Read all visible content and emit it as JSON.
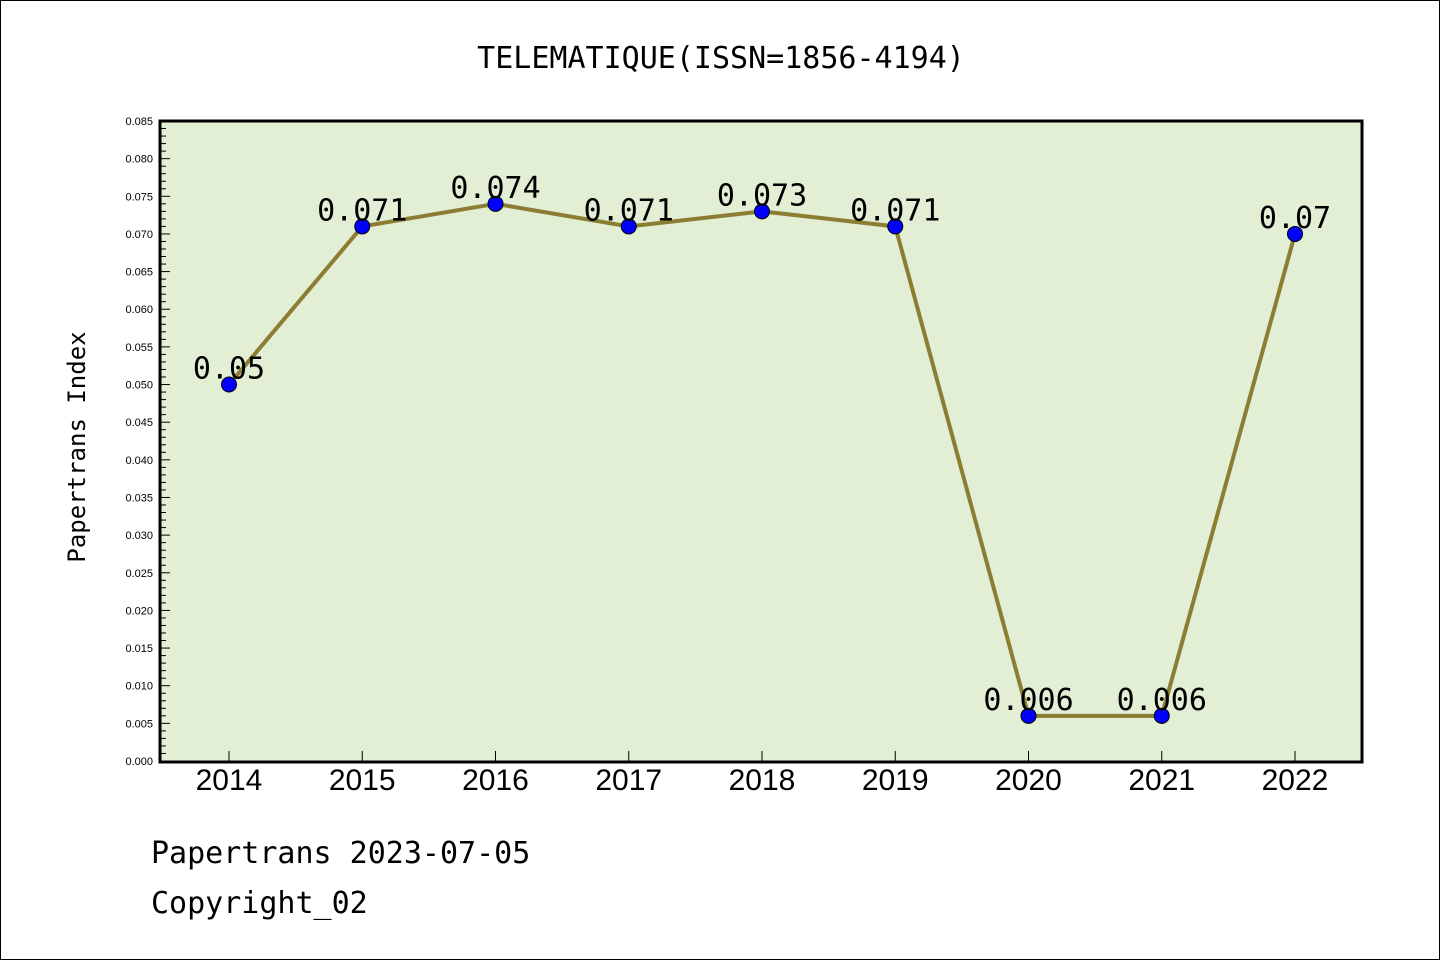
{
  "chart_data": {
    "type": "line",
    "title": "TELEMATIQUE(ISSN=1856-4194)",
    "xlabel": "",
    "ylabel": "Papertrans Index",
    "categories": [
      "2014",
      "2015",
      "2016",
      "2017",
      "2018",
      "2019",
      "2020",
      "2021",
      "2022"
    ],
    "series": [
      {
        "values": [
          0.05,
          0.071,
          0.074,
          0.071,
          0.073,
          0.071,
          0.006,
          0.006,
          0.07
        ],
        "data_labels": [
          "0.05",
          "0.071",
          "0.074",
          "0.071",
          "0.073",
          "0.071",
          "0.006",
          "0.006",
          "0.07"
        ],
        "line_color": "#8b7d32",
        "marker_color": "#0000ff"
      }
    ],
    "ylim": [
      0,
      0.085
    ],
    "yticks": [
      "0.000",
      "0.005",
      "0.010",
      "0.015",
      "0.020",
      "0.025",
      "0.030",
      "0.035",
      "0.040",
      "0.045",
      "0.050",
      "0.055",
      "0.060",
      "0.065",
      "0.070",
      "0.075",
      "0.080",
      "0.085"
    ],
    "grid": false,
    "plot_background": "#e2efd5"
  },
  "footer": {
    "line1": "Papertrans 2023-07-05",
    "line2": "Copyright_02"
  }
}
